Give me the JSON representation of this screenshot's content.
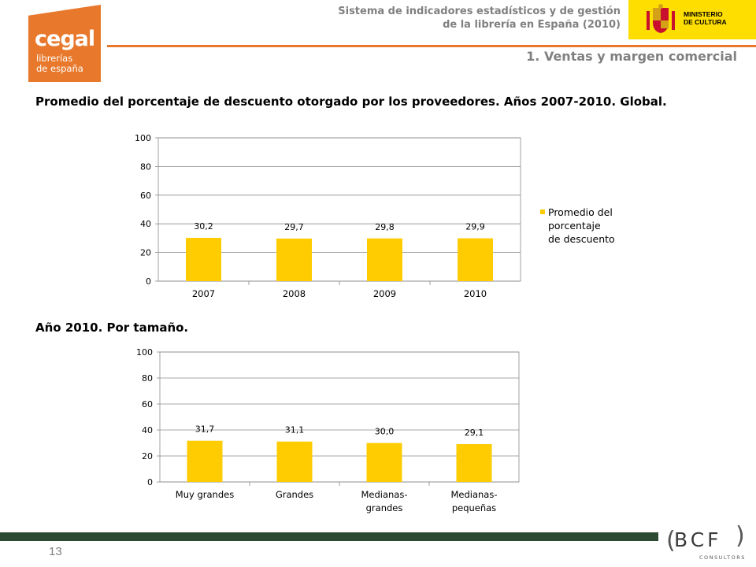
{
  "header": {
    "logo": {
      "main": "cegal",
      "line1": "librerías",
      "line2": "de españa"
    },
    "system_title_line1": "Sistema de indicadores estadísticos y de gestión",
    "system_title_line2": "de la librería en España (2010)",
    "ministry_line1": "MINISTERIO",
    "ministry_line2": "DE CULTURA",
    "section": "1. Ventas y margen comercial"
  },
  "titles": {
    "main": "Promedio del porcentaje de descuento otorgado por los proveedores. Años 2007-2010. Global.",
    "sub": "Año 2010. Por tamaño."
  },
  "footer": {
    "page_number": "13",
    "consultant_logo": "BCF",
    "consultant_sub": "CONSULTORS"
  },
  "colors": {
    "bar": "#fecc00",
    "accent": "#e8782b",
    "footer": "#2c4a31",
    "ministry": "#fedd00"
  },
  "chart_data": [
    {
      "type": "bar",
      "categories": [
        "2007",
        "2008",
        "2009",
        "2010"
      ],
      "values": [
        30.2,
        29.7,
        29.8,
        29.9
      ],
      "data_labels": [
        "30,2",
        "29,7",
        "29,8",
        "29,9"
      ],
      "series": [
        {
          "name": "Promedio del porcentaje de descuento",
          "values": [
            30.2,
            29.7,
            29.8,
            29.9
          ]
        }
      ],
      "legend_lines": [
        "Promedio del",
        "porcentaje",
        "de descuento"
      ],
      "legend": "right",
      "ylim": [
        0,
        100
      ],
      "yticks": [
        0,
        20,
        40,
        60,
        80,
        100
      ],
      "grid": true,
      "xlabel": "",
      "ylabel": "",
      "title": ""
    },
    {
      "type": "bar",
      "categories": [
        "Muy grandes",
        "Grandes",
        "Medianas-grandes",
        "Medianas-pequeñas"
      ],
      "category_lines": [
        [
          "Muy grandes"
        ],
        [
          "Grandes"
        ],
        [
          "Medianas-",
          "grandes"
        ],
        [
          "Medianas-",
          "pequeñas"
        ]
      ],
      "values": [
        31.7,
        31.1,
        30.0,
        29.1
      ],
      "data_labels": [
        "31,7",
        "31,1",
        "30,0",
        "29,1"
      ],
      "ylim": [
        0,
        100
      ],
      "yticks": [
        0,
        20,
        40,
        60,
        80,
        100
      ],
      "grid": true,
      "xlabel": "",
      "ylabel": "",
      "title": ""
    }
  ]
}
